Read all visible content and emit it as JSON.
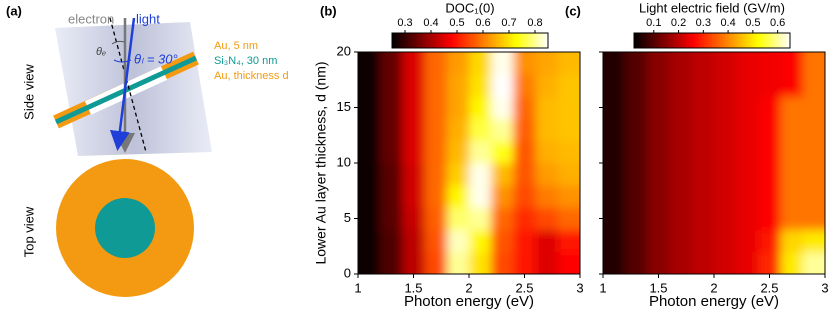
{
  "diagram": {
    "panel_label": "(a)",
    "side_view": "Side view",
    "top_view": "Top view",
    "electron": "electron",
    "light": "light",
    "theta_e": "θₑ",
    "theta_l": "θₗ = 30°",
    "layer_top": "Au, 5 nm",
    "layer_mid": "Si₃N₄, 30 nm",
    "layer_bottom": "Au, thickness d"
  },
  "chart_data": [
    {
      "type": "heatmap",
      "panel_label": "(b)",
      "title": "DOC₁(0)",
      "xlabel": "Photon energy (eV)",
      "ylabel": "Lower Au layer thickness, d (nm)",
      "colormap": "hot",
      "xlim": [
        1,
        3
      ],
      "ylim": [
        0,
        20
      ],
      "xticks": [
        1,
        1.5,
        2,
        2.5,
        3
      ],
      "yticks": [
        0,
        5,
        10,
        15,
        20
      ],
      "show_ytick_labels": true,
      "clim": [
        0.25,
        0.85
      ],
      "cticks": [
        0.3,
        0.4,
        0.5,
        0.6,
        0.7,
        0.8
      ],
      "x": [
        1.1,
        1.3,
        1.5,
        1.7,
        1.9,
        2.1,
        2.3,
        2.5,
        2.7,
        2.9
      ],
      "y": [
        1,
        3,
        5,
        7,
        9,
        11,
        13,
        15,
        17,
        19
      ],
      "z": [
        [
          0.26,
          0.32,
          0.42,
          0.55,
          0.8,
          0.7,
          0.55,
          0.5,
          0.45,
          0.48
        ],
        [
          0.26,
          0.32,
          0.42,
          0.56,
          0.82,
          0.72,
          0.56,
          0.5,
          0.45,
          0.5
        ],
        [
          0.26,
          0.33,
          0.43,
          0.57,
          0.78,
          0.8,
          0.58,
          0.52,
          0.55,
          0.58
        ],
        [
          0.26,
          0.33,
          0.44,
          0.58,
          0.72,
          0.84,
          0.62,
          0.55,
          0.6,
          0.62
        ],
        [
          0.26,
          0.33,
          0.44,
          0.58,
          0.68,
          0.84,
          0.66,
          0.56,
          0.63,
          0.65
        ],
        [
          0.26,
          0.34,
          0.45,
          0.58,
          0.66,
          0.8,
          0.74,
          0.56,
          0.65,
          0.66
        ],
        [
          0.26,
          0.34,
          0.45,
          0.58,
          0.65,
          0.76,
          0.8,
          0.57,
          0.66,
          0.67
        ],
        [
          0.26,
          0.34,
          0.45,
          0.58,
          0.64,
          0.72,
          0.84,
          0.58,
          0.66,
          0.67
        ],
        [
          0.26,
          0.34,
          0.45,
          0.58,
          0.64,
          0.7,
          0.85,
          0.6,
          0.65,
          0.67
        ],
        [
          0.26,
          0.34,
          0.45,
          0.58,
          0.63,
          0.69,
          0.84,
          0.62,
          0.64,
          0.66
        ]
      ]
    },
    {
      "type": "heatmap",
      "panel_label": "(c)",
      "title": "Light electric field (GV/m)",
      "xlabel": "Photon energy (eV)",
      "colormap": "hot",
      "xlim": [
        1,
        3
      ],
      "ylim": [
        0,
        20
      ],
      "xticks": [
        1,
        1.5,
        2,
        2.5,
        3
      ],
      "yticks": [
        0,
        5,
        10,
        15,
        20
      ],
      "show_ytick_labels": false,
      "clim": [
        0.02,
        0.65
      ],
      "cticks": [
        0.1,
        0.2,
        0.3,
        0.4,
        0.5,
        0.6
      ],
      "x": [
        1.1,
        1.3,
        1.5,
        1.7,
        1.9,
        2.1,
        2.3,
        2.5,
        2.7,
        2.9
      ],
      "y": [
        1,
        3,
        5,
        7,
        9,
        11,
        13,
        15,
        17,
        19
      ],
      "z": [
        [
          0.05,
          0.1,
          0.15,
          0.18,
          0.2,
          0.22,
          0.24,
          0.3,
          0.5,
          0.6
        ],
        [
          0.05,
          0.1,
          0.15,
          0.18,
          0.2,
          0.22,
          0.24,
          0.28,
          0.48,
          0.5
        ],
        [
          0.05,
          0.1,
          0.15,
          0.18,
          0.2,
          0.22,
          0.24,
          0.26,
          0.38,
          0.38
        ],
        [
          0.05,
          0.1,
          0.15,
          0.18,
          0.2,
          0.22,
          0.24,
          0.26,
          0.38,
          0.38
        ],
        [
          0.05,
          0.1,
          0.15,
          0.18,
          0.2,
          0.22,
          0.24,
          0.26,
          0.38,
          0.38
        ],
        [
          0.05,
          0.1,
          0.15,
          0.18,
          0.2,
          0.22,
          0.24,
          0.26,
          0.38,
          0.38
        ],
        [
          0.05,
          0.1,
          0.15,
          0.18,
          0.2,
          0.22,
          0.24,
          0.26,
          0.38,
          0.38
        ],
        [
          0.05,
          0.1,
          0.15,
          0.18,
          0.2,
          0.22,
          0.24,
          0.26,
          0.38,
          0.38
        ],
        [
          0.05,
          0.1,
          0.15,
          0.18,
          0.2,
          0.22,
          0.24,
          0.25,
          0.26,
          0.38
        ],
        [
          0.05,
          0.1,
          0.15,
          0.18,
          0.2,
          0.22,
          0.24,
          0.25,
          0.26,
          0.38
        ]
      ]
    }
  ]
}
